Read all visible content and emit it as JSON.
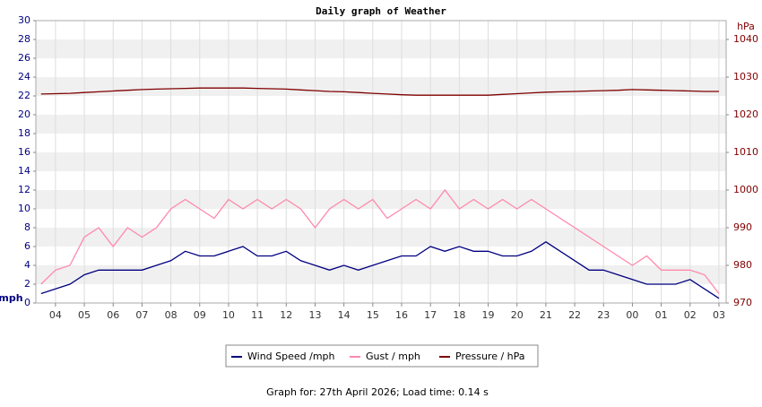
{
  "chart_data": {
    "type": "line",
    "title": "Daily graph of Weather",
    "y_label": "mph",
    "y2_label": "hPa",
    "footer": "Graph for: 27th April 2026; Load time: 0.14 s",
    "grid": true,
    "x": [
      3.5,
      4,
      4.5,
      5,
      5.5,
      6,
      6.5,
      7,
      7.5,
      8,
      8.5,
      9,
      9.5,
      10,
      10.5,
      11,
      11.5,
      12,
      12.5,
      13,
      13.5,
      14,
      14.5,
      15,
      15.5,
      16,
      16.5,
      17,
      17.5,
      18,
      18.5,
      19,
      19.5,
      20,
      20.5,
      21,
      21.5,
      22,
      22.5,
      23,
      23.5,
      24,
      24.5,
      25,
      25.5,
      26,
      26.5,
      27
    ],
    "xlim": [
      3.32,
      27.25
    ],
    "xticks": [
      {
        "value": 4,
        "label": "04"
      },
      {
        "value": 5,
        "label": "05"
      },
      {
        "value": 6,
        "label": "06"
      },
      {
        "value": 7,
        "label": "07"
      },
      {
        "value": 8,
        "label": "08"
      },
      {
        "value": 9,
        "label": "09"
      },
      10,
      11,
      12,
      13,
      14,
      15,
      16,
      17,
      18,
      19,
      20,
      21,
      22,
      23,
      {
        "value": 24,
        "label": "00"
      },
      {
        "value": 25,
        "label": "01"
      },
      {
        "value": 26,
        "label": "02"
      },
      {
        "value": 27,
        "label": "03"
      }
    ],
    "ylim": [
      0,
      30
    ],
    "yticks": [
      0,
      2,
      4,
      6,
      8,
      10,
      12,
      14,
      16,
      18,
      20,
      22,
      24,
      26,
      28,
      30
    ],
    "y2lim": [
      970,
      1045
    ],
    "y2ticks": [
      970,
      980,
      990,
      1000,
      1010,
      1020,
      1030,
      1040
    ],
    "series": [
      {
        "name": "Gust / mph",
        "color": "#ff88aa",
        "values": [
          2,
          3.5,
          4,
          7,
          8,
          6,
          8,
          7,
          8,
          10,
          11,
          10,
          9,
          11,
          10,
          11,
          10,
          11,
          10,
          8,
          10,
          11,
          10,
          11,
          9,
          10,
          11,
          10,
          12,
          10,
          11,
          10,
          11,
          10,
          11,
          10,
          9,
          8,
          7,
          6,
          5,
          4,
          5,
          3.5,
          3.5,
          3.5,
          3,
          1
        ]
      },
      {
        "name": "Wind Speed /mph",
        "color": "#000080",
        "values": [
          1,
          1.5,
          2,
          3,
          3.5,
          3.5,
          3.5,
          3.5,
          4,
          4.5,
          5.5,
          5,
          5,
          5.5,
          6,
          5,
          5,
          5.5,
          4.5,
          4,
          3.5,
          4,
          3.5,
          4,
          4.5,
          5,
          5,
          6,
          5.5,
          6,
          5.5,
          5.5,
          5,
          5,
          5.5,
          6.5,
          5.5,
          4.5,
          3.5,
          3.5,
          3,
          2.5,
          2,
          2,
          2,
          2.5,
          1.5,
          0.5
        ]
      },
      {
        "name": "Pressure / hPa",
        "color": "#800000",
        "axis": "y2",
        "values": [
          1025.5,
          1025.6,
          1025.7,
          1025.9,
          1026.1,
          1026.3,
          1026.5,
          1026.7,
          1026.8,
          1026.9,
          1027,
          1027.1,
          1027.1,
          1027.1,
          1027.1,
          1027.0,
          1026.9,
          1026.8,
          1026.6,
          1026.4,
          1026.2,
          1026.1,
          1025.9,
          1025.7,
          1025.5,
          1025.3,
          1025.2,
          1025.2,
          1025.2,
          1025.2,
          1025.2,
          1025.2,
          1025.4,
          1025.6,
          1025.8,
          1026,
          1026.1,
          1026.2,
          1026.3,
          1026.4,
          1026.5,
          1026.7,
          1026.6,
          1026.5,
          1026.4,
          1026.3,
          1026.2,
          1026.2
        ]
      }
    ],
    "legend_order": [
      1,
      0,
      2
    ]
  }
}
